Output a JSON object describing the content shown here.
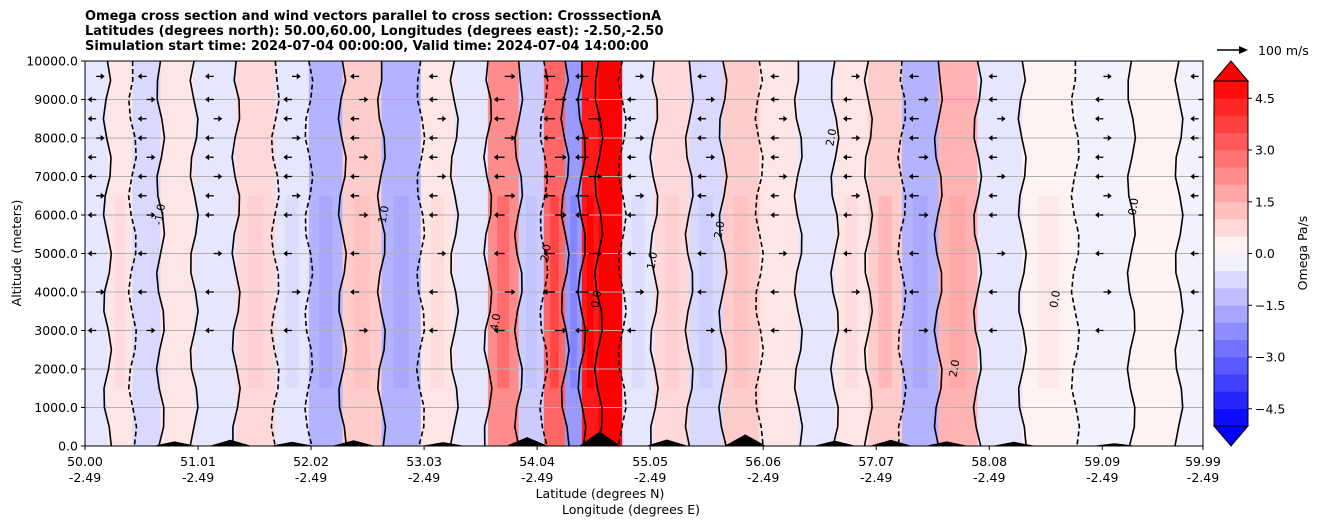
{
  "chart_data": {
    "type": "heatmap",
    "title_lines": [
      "Omega cross section and wind vectors parallel to cross section: CrosssectionA",
      "Latitudes (degrees north): 50.00,60.00, Longitudes (degrees east): -2.50,-2.50",
      "Simulation start time: 2024-07-04 00:00:00, Valid time: 2024-07-04 14:00:00"
    ],
    "xlabel_line1": "Latitude (degrees N)",
    "xlabel_line2": "Longitude (degrees E)",
    "ylabel": "Altitude (meters)",
    "ylim": [
      0,
      10000
    ],
    "xlim": [
      50.0,
      59.99
    ],
    "yticks": [
      {
        "value": 0,
        "label": "0.0"
      },
      {
        "value": 1000,
        "label": "1000.0"
      },
      {
        "value": 2000,
        "label": "2000.0"
      },
      {
        "value": 3000,
        "label": "3000.0"
      },
      {
        "value": 4000,
        "label": "4000.0"
      },
      {
        "value": 5000,
        "label": "5000.0"
      },
      {
        "value": 6000,
        "label": "6000.0"
      },
      {
        "value": 7000,
        "label": "7000.0"
      },
      {
        "value": 8000,
        "label": "8000.0"
      },
      {
        "value": 9000,
        "label": "9000.0"
      },
      {
        "value": 10000,
        "label": "10000.0"
      }
    ],
    "xticks": [
      {
        "value": 50.0,
        "lat": "50.00",
        "lon": "-2.49"
      },
      {
        "value": 51.01,
        "lat": "51.01",
        "lon": "-2.49"
      },
      {
        "value": 52.02,
        "lat": "52.02",
        "lon": "-2.49"
      },
      {
        "value": 53.03,
        "lat": "53.03",
        "lon": "-2.49"
      },
      {
        "value": 54.04,
        "lat": "54.04",
        "lon": "-2.49"
      },
      {
        "value": 55.05,
        "lat": "55.05",
        "lon": "-2.49"
      },
      {
        "value": 56.06,
        "lat": "56.06",
        "lon": "-2.49"
      },
      {
        "value": 57.07,
        "lat": "57.07",
        "lon": "-2.49"
      },
      {
        "value": 58.08,
        "lat": "58.08",
        "lon": "-2.49"
      },
      {
        "value": 59.09,
        "lat": "59.09",
        "lon": "-2.49"
      },
      {
        "value": 59.99,
        "lat": "59.99",
        "lon": "-2.49"
      }
    ],
    "colorbar": {
      "label": "Omega Pa/s",
      "range": [
        -5,
        5
      ],
      "ticks": [
        {
          "value": 4.5,
          "label": "4.5"
        },
        {
          "value": 3.0,
          "label": "3.0"
        },
        {
          "value": 1.5,
          "label": "1.5"
        },
        {
          "value": 0.0,
          "label": "0.0"
        },
        {
          "value": -1.5,
          "label": "−1.5"
        },
        {
          "value": -3.0,
          "label": "−3.0"
        },
        {
          "value": -4.5,
          "label": "−4.5"
        }
      ]
    },
    "vector_key": {
      "label": "100 m/s"
    },
    "omega_columns": [
      {
        "lat": 50.1,
        "omega": -0.4
      },
      {
        "lat": 50.3,
        "omega": 0.6
      },
      {
        "lat": 50.55,
        "omega": -0.7
      },
      {
        "lat": 50.8,
        "omega": 0.4
      },
      {
        "lat": 51.15,
        "omega": -0.5
      },
      {
        "lat": 51.55,
        "omega": 0.8
      },
      {
        "lat": 51.85,
        "omega": -0.6
      },
      {
        "lat": 52.15,
        "omega": -1.5
      },
      {
        "lat": 52.45,
        "omega": 0.9
      },
      {
        "lat": 52.85,
        "omega": -1.4
      },
      {
        "lat": 53.15,
        "omega": 0.6
      },
      {
        "lat": 53.45,
        "omega": -0.5
      },
      {
        "lat": 53.75,
        "omega": 2.3
      },
      {
        "lat": 54.0,
        "omega": -1.0
      },
      {
        "lat": 54.2,
        "omega": 3.0
      },
      {
        "lat": 54.38,
        "omega": -2.0
      },
      {
        "lat": 54.5,
        "omega": 4.6
      },
      {
        "lat": 54.68,
        "omega": 5.0
      },
      {
        "lat": 54.92,
        "omega": -0.6
      },
      {
        "lat": 55.25,
        "omega": 0.7
      },
      {
        "lat": 55.55,
        "omega": -0.8
      },
      {
        "lat": 55.85,
        "omega": 0.9
      },
      {
        "lat": 56.2,
        "omega": 0.4
      },
      {
        "lat": 56.55,
        "omega": -0.4
      },
      {
        "lat": 56.85,
        "omega": 0.5
      },
      {
        "lat": 57.15,
        "omega": 1.1
      },
      {
        "lat": 57.45,
        "omega": -1.5
      },
      {
        "lat": 57.8,
        "omega": 1.4
      },
      {
        "lat": 58.15,
        "omega": -0.5
      },
      {
        "lat": 58.6,
        "omega": 0.3
      },
      {
        "lat": 59.1,
        "omega": -0.3
      },
      {
        "lat": 59.6,
        "omega": 0.2
      },
      {
        "lat": 59.95,
        "omega": -0.2
      }
    ],
    "surface_peaks": [
      {
        "lat": 50.8,
        "height": 120
      },
      {
        "lat": 51.3,
        "height": 160
      },
      {
        "lat": 51.85,
        "height": 110
      },
      {
        "lat": 52.4,
        "height": 150
      },
      {
        "lat": 53.2,
        "height": 100
      },
      {
        "lat": 53.95,
        "height": 230
      },
      {
        "lat": 54.6,
        "height": 380
      },
      {
        "lat": 55.2,
        "height": 170
      },
      {
        "lat": 55.9,
        "height": 300
      },
      {
        "lat": 56.7,
        "height": 140
      },
      {
        "lat": 57.2,
        "height": 160
      },
      {
        "lat": 57.7,
        "height": 120
      },
      {
        "lat": 58.3,
        "height": 110
      },
      {
        "lat": 59.2,
        "height": 70
      }
    ],
    "contour_labels": [
      {
        "lat": 50.7,
        "alt": 6000,
        "text": "-1.0"
      },
      {
        "lat": 52.7,
        "alt": 6000,
        "text": "1.0"
      },
      {
        "lat": 53.7,
        "alt": 3200,
        "text": "4.0"
      },
      {
        "lat": 54.15,
        "alt": 5000,
        "text": "2.0"
      },
      {
        "lat": 54.6,
        "alt": 3800,
        "text": "0.0"
      },
      {
        "lat": 55.1,
        "alt": 4800,
        "text": "1.0"
      },
      {
        "lat": 55.7,
        "alt": 5600,
        "text": "2.0"
      },
      {
        "lat": 56.7,
        "alt": 8000,
        "text": "2.0"
      },
      {
        "lat": 57.8,
        "alt": 2000,
        "text": "2.0"
      },
      {
        "lat": 58.7,
        "alt": 3800,
        "text": "0.0"
      },
      {
        "lat": 59.4,
        "alt": 6200,
        "text": "0.0"
      }
    ]
  }
}
